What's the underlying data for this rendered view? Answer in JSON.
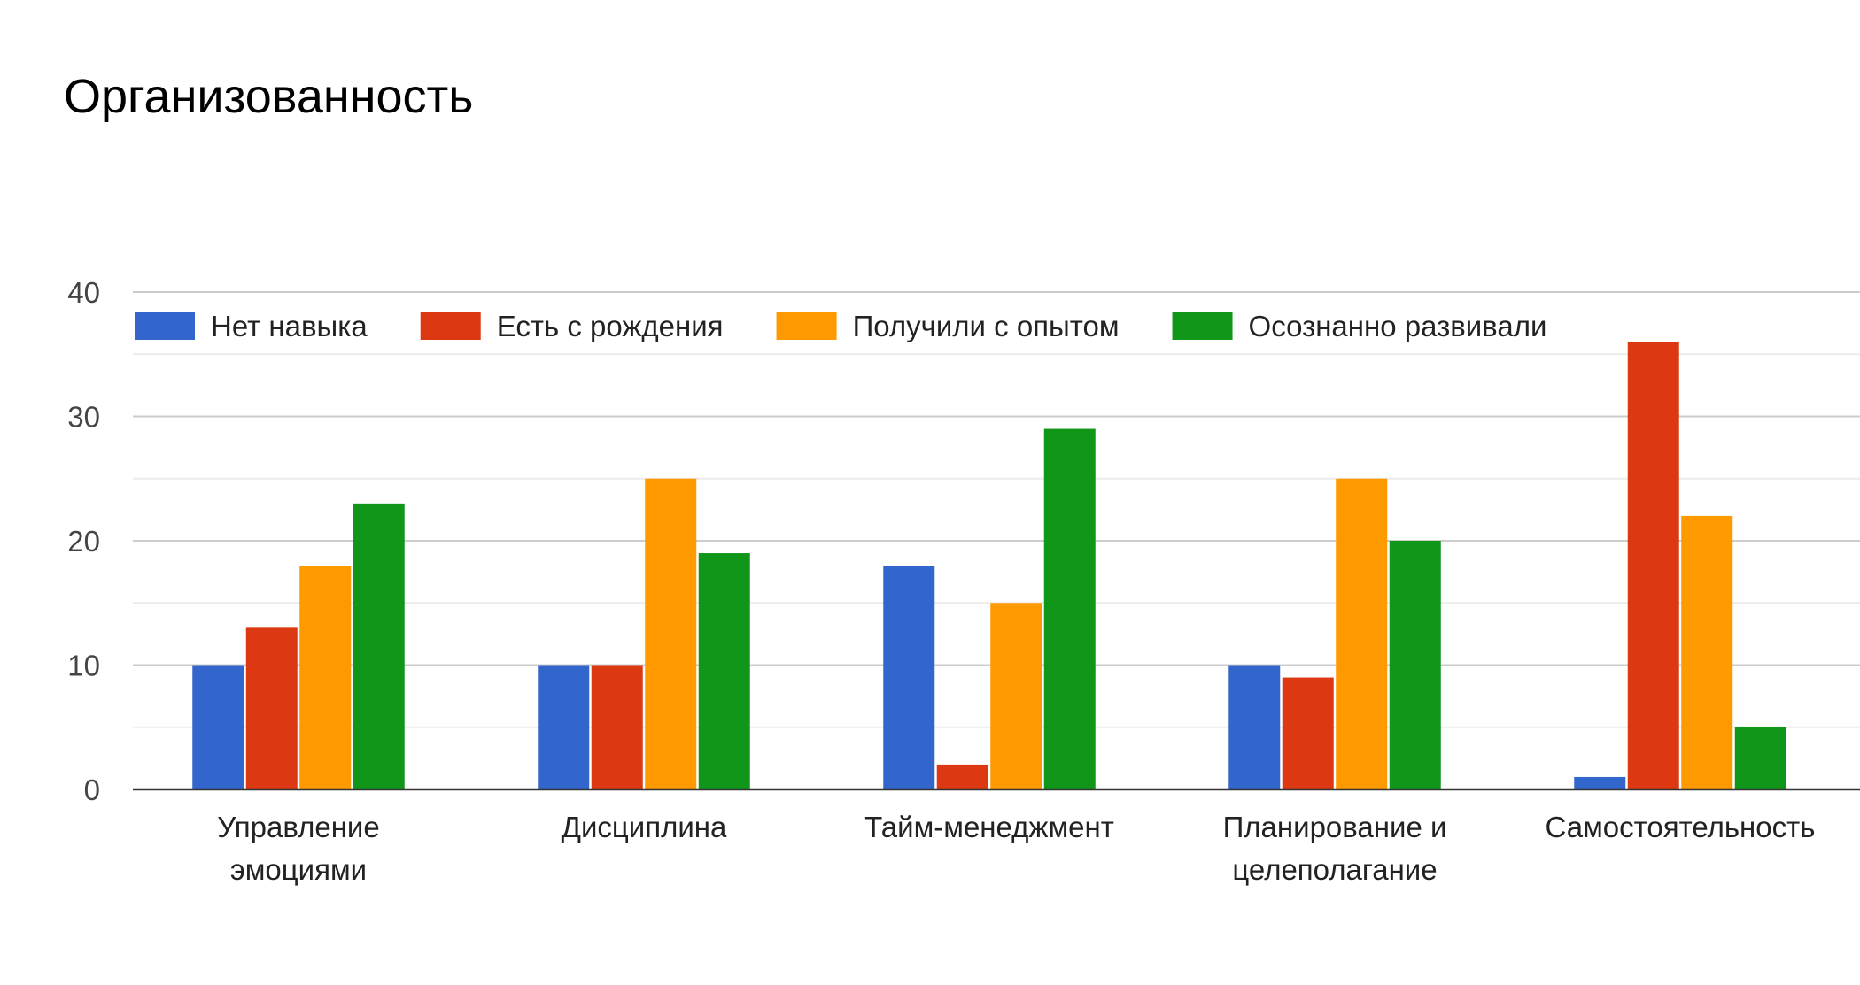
{
  "chart_data": {
    "type": "bar",
    "title": "Организованность",
    "categories": [
      [
        "Управление",
        "эмоциями"
      ],
      [
        "Дисциплина"
      ],
      [
        "Тайм-менеджмент"
      ],
      [
        "Планирование и",
        "целеполагание"
      ],
      [
        "Самостоятельность"
      ]
    ],
    "series": [
      {
        "name": "Нет навыка",
        "color": "#3366cc",
        "values": [
          10,
          10,
          18,
          10,
          1
        ]
      },
      {
        "name": "Есть с рождения",
        "color": "#dc3912",
        "values": [
          13,
          10,
          2,
          9,
          36
        ]
      },
      {
        "name": "Получили с опытом",
        "color": "#ff9900",
        "values": [
          18,
          25,
          15,
          25,
          22
        ]
      },
      {
        "name": "Осознанно развивали",
        "color": "#109618",
        "values": [
          23,
          19,
          29,
          20,
          5
        ]
      }
    ],
    "ylim": [
      0,
      40
    ],
    "yticks": [
      0,
      10,
      20,
      30,
      40
    ],
    "grid": true,
    "legend": "top"
  }
}
